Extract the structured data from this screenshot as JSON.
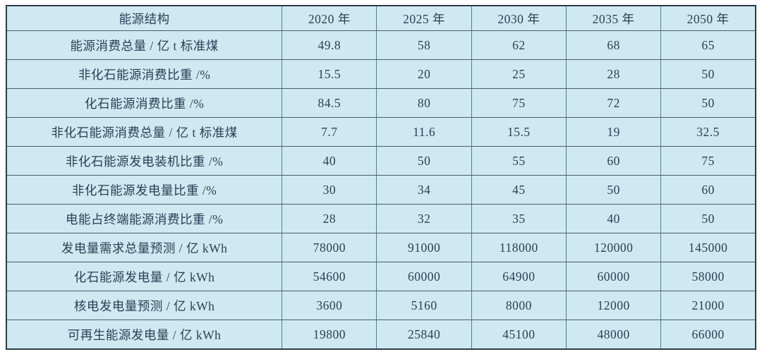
{
  "table": {
    "title": "能源结构",
    "header": {
      "corner_label": "能源结构",
      "years": [
        "2020 年",
        "2025 年",
        "2030 年",
        "2035 年",
        "2050 年"
      ]
    },
    "rows": [
      {
        "label": "能源消费总量 / 亿 t 标准煤",
        "values": [
          "49.8",
          "58",
          "62",
          "68",
          "65"
        ]
      },
      {
        "label": "非化石能源消费比重 /%",
        "values": [
          "15.5",
          "20",
          "25",
          "28",
          "50"
        ]
      },
      {
        "label": "化石能源消费比重 /%",
        "values": [
          "84.5",
          "80",
          "75",
          "72",
          "50"
        ]
      },
      {
        "label": "非化石能源消费总量 / 亿 t 标准煤",
        "values": [
          "7.7",
          "11.6",
          "15.5",
          "19",
          "32.5"
        ]
      },
      {
        "label": "非化石能源发电装机比重 /%",
        "values": [
          "40",
          "50",
          "55",
          "60",
          "75"
        ]
      },
      {
        "label": "非化石能源发电量比重 /%",
        "values": [
          "30",
          "34",
          "45",
          "50",
          "60"
        ]
      },
      {
        "label": "电能占终端能源消费比重 /%",
        "values": [
          "28",
          "32",
          "35",
          "40",
          "50"
        ]
      },
      {
        "label": "发电量需求总量预测 / 亿 kWh",
        "values": [
          "78000",
          "91000",
          "118000",
          "120000",
          "145000"
        ]
      },
      {
        "label": "化石能源发电量 / 亿 kWh",
        "values": [
          "54600",
          "60000",
          "64900",
          "60000",
          "58000"
        ]
      },
      {
        "label": "核电发电量预测 / 亿 kWh",
        "values": [
          "3600",
          "5160",
          "8000",
          "12000",
          "21000"
        ]
      },
      {
        "label": "可再生能源发电量 / 亿 kWh",
        "values": [
          "19800",
          "25840",
          "45100",
          "48000",
          "66000"
        ]
      }
    ],
    "colors": {
      "cell_background": "#cfe9f2",
      "text": "#2b3e55",
      "horizontal_border": "#4d5c64",
      "vertical_border": "#4f7d92",
      "outer_border": "#2e3c45"
    }
  },
  "chart_data": {
    "type": "table",
    "title": "能源结构",
    "categories": [
      "2020 年",
      "2025 年",
      "2030 年",
      "2035 年",
      "2050 年"
    ],
    "series": [
      {
        "name": "能源消费总量 / 亿 t 标准煤",
        "values": [
          49.8,
          58,
          62,
          68,
          65
        ]
      },
      {
        "name": "非化石能源消费比重 /%",
        "values": [
          15.5,
          20,
          25,
          28,
          50
        ]
      },
      {
        "name": "化石能源消费比重 /%",
        "values": [
          84.5,
          80,
          75,
          72,
          50
        ]
      },
      {
        "name": "非化石能源消费总量 / 亿 t 标准煤",
        "values": [
          7.7,
          11.6,
          15.5,
          19,
          32.5
        ]
      },
      {
        "name": "非化石能源发电装机比重 /%",
        "values": [
          40,
          50,
          55,
          60,
          75
        ]
      },
      {
        "name": "非化石能源发电量比重 /%",
        "values": [
          30,
          34,
          45,
          50,
          60
        ]
      },
      {
        "name": "电能占终端能源消费比重 /%",
        "values": [
          28,
          32,
          35,
          40,
          50
        ]
      },
      {
        "name": "发电量需求总量预测 / 亿 kWh",
        "values": [
          78000,
          91000,
          118000,
          120000,
          145000
        ]
      },
      {
        "name": "化石能源发电量 / 亿 kWh",
        "values": [
          54600,
          60000,
          64900,
          60000,
          58000
        ]
      },
      {
        "name": "核电发电量预测 / 亿 kWh",
        "values": [
          3600,
          5160,
          8000,
          12000,
          21000
        ]
      },
      {
        "name": "可再生能源发电量 / 亿 kWh",
        "values": [
          19800,
          25840,
          45100,
          48000,
          66000
        ]
      }
    ]
  }
}
